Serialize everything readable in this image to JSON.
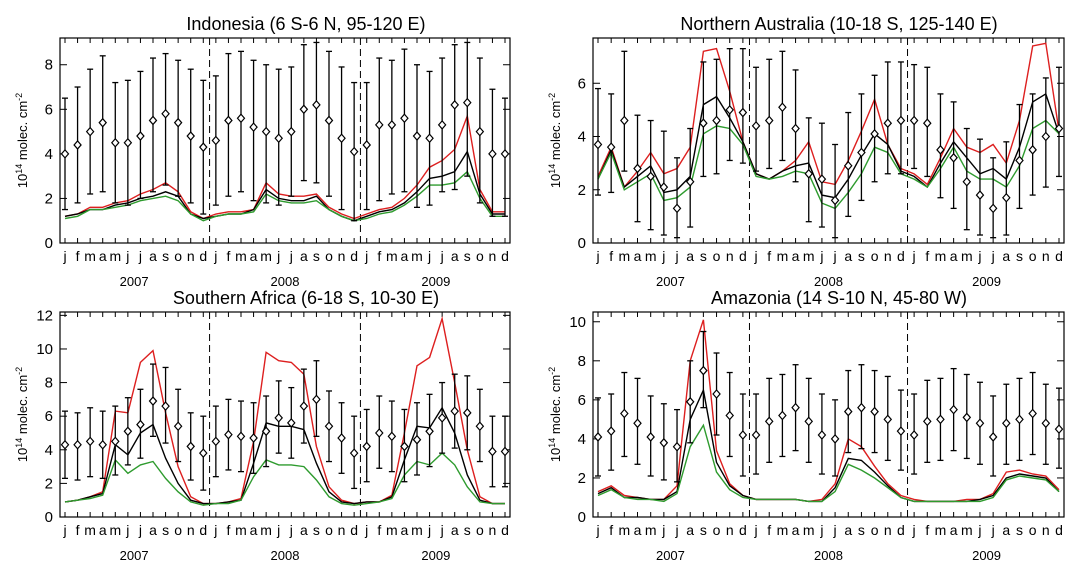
{
  "months": [
    "j",
    "f",
    "m",
    "a",
    "m",
    "j",
    "j",
    "a",
    "s",
    "o",
    "n",
    "d",
    "j",
    "f",
    "m",
    "a",
    "m",
    "j",
    "j",
    "a",
    "s",
    "o",
    "n",
    "d",
    "j",
    "f",
    "m",
    "a",
    "m",
    "j",
    "j",
    "a",
    "s",
    "o",
    "n",
    "d"
  ],
  "years": [
    "2007",
    "2008",
    "2009"
  ],
  "ylabel": {
    "base": "10",
    "exp": "14",
    "unit": " molec. cm",
    "unit_exp": "-2"
  },
  "series_colors": {
    "red": "#dd1f1f",
    "black": "#000000",
    "green": "#2e9b2e",
    "obs": "#000000"
  },
  "chart_data": [
    {
      "type": "line",
      "title": "Indonesia (6 S-6 N, 95-120 E)",
      "ylim": [
        0,
        9.2
      ],
      "yticks": [
        0,
        2,
        4,
        6,
        8
      ],
      "x": [
        "2007-01",
        "2007-02",
        "2007-03",
        "2007-04",
        "2007-05",
        "2007-06",
        "2007-07",
        "2007-08",
        "2007-09",
        "2007-10",
        "2007-11",
        "2007-12",
        "2008-01",
        "2008-02",
        "2008-03",
        "2008-04",
        "2008-05",
        "2008-06",
        "2008-07",
        "2008-08",
        "2008-09",
        "2008-10",
        "2008-11",
        "2008-12",
        "2009-01",
        "2009-02",
        "2009-03",
        "2009-04",
        "2009-05",
        "2009-06",
        "2009-07",
        "2009-08",
        "2009-09",
        "2009-10",
        "2009-11",
        "2009-12"
      ],
      "vlines": [
        "2007-12",
        "2008-12"
      ],
      "series": [
        {
          "color": "red",
          "values": [
            1.2,
            1.3,
            1.6,
            1.6,
            1.8,
            1.9,
            2.2,
            2.4,
            2.7,
            2.3,
            1.4,
            1.1,
            1.3,
            1.4,
            1.4,
            1.5,
            2.7,
            2.2,
            2.1,
            2.1,
            2.2,
            1.6,
            1.3,
            1.1,
            1.3,
            1.5,
            1.6,
            2.0,
            2.6,
            3.4,
            3.7,
            4.2,
            5.7,
            2.4,
            1.4,
            1.4
          ]
        },
        {
          "color": "black",
          "values": [
            1.2,
            1.3,
            1.5,
            1.5,
            1.7,
            1.8,
            2.0,
            2.1,
            2.3,
            2.1,
            1.3,
            1.1,
            1.2,
            1.3,
            1.3,
            1.5,
            2.4,
            2.0,
            1.9,
            1.9,
            2.1,
            1.5,
            1.2,
            1.0,
            1.2,
            1.4,
            1.5,
            1.8,
            2.3,
            2.9,
            3.0,
            3.2,
            4.1,
            2.2,
            1.3,
            1.3
          ]
        },
        {
          "color": "green",
          "values": [
            1.1,
            1.2,
            1.5,
            1.5,
            1.6,
            1.7,
            1.9,
            2.0,
            2.1,
            1.9,
            1.3,
            1.0,
            1.2,
            1.3,
            1.3,
            1.4,
            2.2,
            1.9,
            1.8,
            1.8,
            1.9,
            1.5,
            1.2,
            1.0,
            1.1,
            1.3,
            1.4,
            1.7,
            2.1,
            2.6,
            2.6,
            2.7,
            3.2,
            2.0,
            1.2,
            1.2
          ]
        }
      ],
      "observations": {
        "mean": [
          4.0,
          4.4,
          5.0,
          5.4,
          4.5,
          4.5,
          4.8,
          5.5,
          5.8,
          5.4,
          4.8,
          4.3,
          4.6,
          5.5,
          5.6,
          5.2,
          5.0,
          4.7,
          5.0,
          6.0,
          6.2,
          5.5,
          4.7,
          4.1,
          4.4,
          5.3,
          5.3,
          5.6,
          4.8,
          4.7,
          5.3,
          6.2,
          6.3,
          5.0,
          4.0,
          4.0
        ],
        "low": [
          1.5,
          1.8,
          2.2,
          2.3,
          1.8,
          1.7,
          2.0,
          2.3,
          2.6,
          2.1,
          1.8,
          1.3,
          1.7,
          2.1,
          2.3,
          1.9,
          1.8,
          1.7,
          2.1,
          2.8,
          2.7,
          2.1,
          1.5,
          1.0,
          1.5,
          1.9,
          2.2,
          2.3,
          1.6,
          1.7,
          2.3,
          2.4,
          3.0,
          1.8,
          1.2,
          1.2
        ],
        "high": [
          6.5,
          7.0,
          7.8,
          8.4,
          7.2,
          7.3,
          7.7,
          8.3,
          8.5,
          8.2,
          7.8,
          7.3,
          7.5,
          8.5,
          8.6,
          8.2,
          8.0,
          7.8,
          7.9,
          8.9,
          9.0,
          8.6,
          7.9,
          7.2,
          7.2,
          8.3,
          8.2,
          8.7,
          8.0,
          7.7,
          8.3,
          8.9,
          9.0,
          8.3,
          6.9,
          6.5
        ]
      }
    },
    {
      "type": "line",
      "title": "Northern Australia (10-18 S, 125-140 E)",
      "ylim": [
        0,
        7.7
      ],
      "yticks": [
        0,
        2,
        4,
        6
      ],
      "x": [
        "2007-01",
        "2007-02",
        "2007-03",
        "2007-04",
        "2007-05",
        "2007-06",
        "2007-07",
        "2007-08",
        "2007-09",
        "2007-10",
        "2007-11",
        "2007-12",
        "2008-01",
        "2008-02",
        "2008-03",
        "2008-04",
        "2008-05",
        "2008-06",
        "2008-07",
        "2008-08",
        "2008-09",
        "2008-10",
        "2008-11",
        "2008-12",
        "2009-01",
        "2009-02",
        "2009-03",
        "2009-04",
        "2009-05",
        "2009-06",
        "2009-07",
        "2009-08",
        "2009-09",
        "2009-10",
        "2009-11",
        "2009-12"
      ],
      "vlines": [
        "2007-12",
        "2008-12"
      ],
      "series": [
        {
          "color": "red",
          "values": [
            2.5,
            3.6,
            2.1,
            2.7,
            3.4,
            2.6,
            2.8,
            3.6,
            7.2,
            7.3,
            5.7,
            3.8,
            2.6,
            2.4,
            2.7,
            3.1,
            3.8,
            2.3,
            2.2,
            3.1,
            4.2,
            5.4,
            3.7,
            2.8,
            2.6,
            2.2,
            3.2,
            4.3,
            3.6,
            3.4,
            3.7,
            3.0,
            4.6,
            7.4,
            7.5,
            4.2
          ]
        },
        {
          "color": "black",
          "values": [
            2.4,
            3.5,
            2.1,
            2.5,
            2.9,
            1.9,
            2.0,
            2.5,
            5.2,
            5.5,
            4.7,
            3.8,
            2.6,
            2.4,
            2.7,
            2.9,
            3.0,
            1.8,
            1.7,
            2.4,
            3.3,
            4.1,
            3.7,
            2.7,
            2.5,
            2.1,
            3.0,
            3.8,
            3.2,
            2.6,
            2.8,
            2.4,
            3.6,
            5.3,
            5.6,
            4.1
          ]
        },
        {
          "color": "green",
          "values": [
            2.4,
            3.4,
            2.0,
            2.3,
            2.6,
            1.6,
            1.7,
            2.1,
            4.1,
            4.4,
            4.3,
            3.7,
            2.5,
            2.4,
            2.5,
            2.7,
            2.6,
            1.5,
            1.3,
            1.9,
            2.6,
            3.6,
            3.4,
            2.6,
            2.4,
            2.1,
            2.8,
            3.6,
            2.7,
            2.4,
            2.4,
            2.1,
            2.9,
            4.3,
            4.6,
            4.1
          ]
        }
      ],
      "observations": {
        "mean": [
          3.7,
          3.6,
          4.6,
          2.8,
          2.5,
          2.1,
          1.3,
          2.3,
          4.5,
          4.6,
          5.0,
          4.9,
          4.4,
          4.6,
          5.1,
          4.3,
          2.6,
          2.4,
          1.6,
          2.9,
          3.4,
          4.1,
          4.5,
          4.6,
          4.6,
          4.5,
          3.5,
          3.2,
          2.3,
          1.8,
          1.3,
          1.7,
          3.1,
          3.5,
          4.0,
          4.3
        ],
        "low": [
          1.8,
          1.9,
          2.7,
          0.8,
          0.5,
          0.3,
          0.2,
          0.6,
          2.5,
          2.6,
          3.1,
          3.0,
          2.7,
          2.8,
          3.1,
          2.3,
          0.8,
          0.6,
          0.2,
          1.0,
          1.6,
          2.3,
          2.6,
          2.6,
          2.8,
          2.5,
          1.7,
          1.3,
          0.5,
          0.3,
          0.2,
          0.3,
          1.3,
          1.8,
          2.1,
          2.5
        ],
        "high": [
          5.8,
          5.6,
          7.2,
          4.8,
          4.6,
          4.2,
          3.2,
          4.3,
          6.8,
          6.9,
          7.3,
          7.3,
          6.6,
          6.9,
          7.2,
          6.5,
          4.7,
          4.5,
          3.7,
          4.9,
          5.6,
          6.3,
          6.8,
          6.8,
          6.7,
          6.6,
          5.6,
          5.3,
          4.3,
          3.9,
          3.2,
          3.8,
          5.2,
          5.6,
          6.2,
          6.6
        ]
      }
    },
    {
      "type": "line",
      "title": "Southern Africa (6-18 S, 10-30 E)",
      "ylim": [
        0,
        12.2
      ],
      "yticks": [
        0,
        2,
        4,
        6,
        8,
        10,
        12
      ],
      "x": [
        "2007-01",
        "2007-02",
        "2007-03",
        "2007-04",
        "2007-05",
        "2007-06",
        "2007-07",
        "2007-08",
        "2007-09",
        "2007-10",
        "2007-11",
        "2007-12",
        "2008-01",
        "2008-02",
        "2008-03",
        "2008-04",
        "2008-05",
        "2008-06",
        "2008-07",
        "2008-08",
        "2008-09",
        "2008-10",
        "2008-11",
        "2008-12",
        "2009-01",
        "2009-02",
        "2009-03",
        "2009-04",
        "2009-05",
        "2009-06",
        "2009-07",
        "2009-08",
        "2009-09",
        "2009-10",
        "2009-11",
        "2009-12"
      ],
      "vlines": [
        "2007-12",
        "2008-12"
      ],
      "series": [
        {
          "color": "red",
          "values": [
            0.9,
            1.0,
            1.2,
            1.5,
            6.3,
            6.2,
            9.2,
            9.9,
            6.2,
            3.0,
            1.2,
            0.8,
            0.8,
            0.9,
            1.1,
            4.5,
            9.8,
            9.3,
            9.2,
            8.5,
            4.2,
            1.8,
            1.0,
            0.8,
            0.9,
            0.9,
            1.3,
            5.0,
            9.0,
            9.5,
            11.8,
            8.0,
            4.0,
            1.2,
            0.8,
            0.8
          ]
        },
        {
          "color": "black",
          "values": [
            0.9,
            1.0,
            1.2,
            1.4,
            4.3,
            3.7,
            5.0,
            5.5,
            3.5,
            2.0,
            1.0,
            0.8,
            0.8,
            0.9,
            1.0,
            3.2,
            5.6,
            5.4,
            5.4,
            5.2,
            3.2,
            1.5,
            0.9,
            0.8,
            0.9,
            0.9,
            1.2,
            3.4,
            5.4,
            5.3,
            6.5,
            5.0,
            2.5,
            1.0,
            0.8,
            0.8
          ]
        },
        {
          "color": "green",
          "values": [
            0.9,
            1.0,
            1.1,
            1.3,
            3.4,
            2.6,
            3.1,
            3.3,
            2.3,
            1.5,
            0.9,
            0.7,
            0.8,
            0.8,
            1.0,
            2.4,
            3.4,
            3.1,
            3.1,
            3.0,
            2.2,
            1.2,
            0.8,
            0.7,
            0.8,
            0.9,
            1.1,
            2.5,
            3.3,
            3.1,
            3.8,
            3.1,
            1.8,
            0.9,
            0.8,
            0.8
          ]
        }
      ],
      "observations": {
        "mean": [
          4.3,
          4.3,
          4.5,
          4.3,
          4.5,
          5.1,
          5.5,
          6.9,
          6.6,
          5.4,
          4.2,
          3.8,
          4.5,
          4.9,
          4.8,
          4.7,
          5.1,
          5.9,
          5.6,
          6.6,
          7.0,
          5.4,
          4.7,
          3.8,
          4.2,
          5.0,
          4.8,
          4.2,
          4.6,
          5.1,
          5.9,
          6.3,
          6.2,
          5.4,
          3.9,
          3.9
        ],
        "low": [
          2.3,
          2.2,
          2.4,
          2.3,
          2.5,
          3.1,
          3.5,
          4.8,
          4.4,
          3.3,
          2.2,
          1.6,
          2.4,
          2.8,
          2.7,
          2.6,
          3.0,
          3.8,
          3.5,
          4.4,
          4.8,
          3.3,
          2.6,
          1.7,
          2.1,
          2.9,
          2.7,
          2.1,
          2.5,
          3.0,
          3.8,
          4.1,
          4.0,
          3.3,
          1.8,
          1.8
        ],
        "high": [
          6.3,
          6.2,
          6.5,
          6.3,
          6.6,
          7.1,
          7.6,
          9.1,
          8.9,
          7.6,
          6.2,
          6.0,
          6.6,
          7.0,
          6.9,
          6.8,
          7.2,
          8.1,
          7.7,
          8.8,
          9.3,
          7.5,
          6.8,
          6.0,
          6.4,
          7.2,
          6.9,
          6.4,
          6.8,
          7.3,
          8.0,
          8.5,
          8.4,
          7.6,
          6.0,
          6.0
        ]
      }
    },
    {
      "type": "line",
      "title": "Amazonia (14 S-10 N, 45-80 W)",
      "ylim": [
        0,
        10.5
      ],
      "yticks": [
        0,
        2,
        4,
        6,
        8,
        10
      ],
      "x": [
        "2007-01",
        "2007-02",
        "2007-03",
        "2007-04",
        "2007-05",
        "2007-06",
        "2007-07",
        "2007-08",
        "2007-09",
        "2007-10",
        "2007-11",
        "2007-12",
        "2008-01",
        "2008-02",
        "2008-03",
        "2008-04",
        "2008-05",
        "2008-06",
        "2008-07",
        "2008-08",
        "2008-09",
        "2008-10",
        "2008-11",
        "2008-12",
        "2009-01",
        "2009-02",
        "2009-03",
        "2009-04",
        "2009-05",
        "2009-06",
        "2009-07",
        "2009-08",
        "2009-09",
        "2009-10",
        "2009-11",
        "2009-12"
      ],
      "vlines": [
        "2007-12",
        "2008-12"
      ],
      "series": [
        {
          "color": "red",
          "values": [
            1.3,
            1.6,
            1.1,
            1.0,
            0.9,
            0.9,
            1.6,
            8.0,
            10.1,
            3.4,
            1.7,
            1.1,
            0.9,
            0.9,
            0.9,
            0.9,
            0.8,
            0.9,
            1.7,
            4.0,
            3.6,
            2.6,
            1.7,
            1.1,
            0.9,
            0.8,
            0.8,
            0.8,
            0.9,
            0.9,
            1.2,
            2.3,
            2.4,
            2.2,
            2.1,
            1.4
          ]
        },
        {
          "color": "black",
          "values": [
            1.2,
            1.5,
            1.0,
            1.0,
            0.9,
            0.9,
            1.3,
            5.0,
            6.5,
            2.8,
            1.6,
            1.1,
            0.9,
            0.9,
            0.9,
            0.9,
            0.8,
            0.8,
            1.5,
            3.0,
            2.9,
            2.3,
            1.6,
            1.0,
            0.8,
            0.8,
            0.8,
            0.8,
            0.8,
            0.9,
            1.1,
            2.0,
            2.2,
            2.1,
            2.0,
            1.3
          ]
        },
        {
          "color": "green",
          "values": [
            1.1,
            1.4,
            1.0,
            0.9,
            0.9,
            0.8,
            1.2,
            3.6,
            4.7,
            2.3,
            1.4,
            1.0,
            0.9,
            0.9,
            0.9,
            0.9,
            0.8,
            0.8,
            1.3,
            2.7,
            2.4,
            2.0,
            1.5,
            1.0,
            0.8,
            0.8,
            0.8,
            0.8,
            0.8,
            0.8,
            1.0,
            1.9,
            2.1,
            2.0,
            1.9,
            1.3
          ]
        }
      ],
      "observations": {
        "mean": [
          4.1,
          4.4,
          5.3,
          4.8,
          4.1,
          3.8,
          3.6,
          5.9,
          7.5,
          6.3,
          5.2,
          4.2,
          4.2,
          4.9,
          5.2,
          5.6,
          4.9,
          4.2,
          4.0,
          5.4,
          5.6,
          5.4,
          5.0,
          4.4,
          4.2,
          4.9,
          5.0,
          5.5,
          5.1,
          4.8,
          4.1,
          4.8,
          5.0,
          5.3,
          4.8,
          4.5
        ],
        "low": [
          2.1,
          2.4,
          3.1,
          2.7,
          2.1,
          1.9,
          1.8,
          3.8,
          5.6,
          4.2,
          3.1,
          2.1,
          2.2,
          2.8,
          3.1,
          3.4,
          2.8,
          2.2,
          2.1,
          3.3,
          3.5,
          3.3,
          2.9,
          2.4,
          2.2,
          2.8,
          2.9,
          3.4,
          3.0,
          2.7,
          2.1,
          2.7,
          2.9,
          3.2,
          2.7,
          2.5
        ],
        "high": [
          6.1,
          6.3,
          7.4,
          7.1,
          6.2,
          5.8,
          5.5,
          8.0,
          9.5,
          8.4,
          7.4,
          6.3,
          6.3,
          7.1,
          7.3,
          7.8,
          7.1,
          6.3,
          6.0,
          7.5,
          7.8,
          7.5,
          7.2,
          6.5,
          6.3,
          7.0,
          7.1,
          7.6,
          7.3,
          6.9,
          6.2,
          6.8,
          7.1,
          7.4,
          6.8,
          6.6
        ]
      }
    }
  ]
}
